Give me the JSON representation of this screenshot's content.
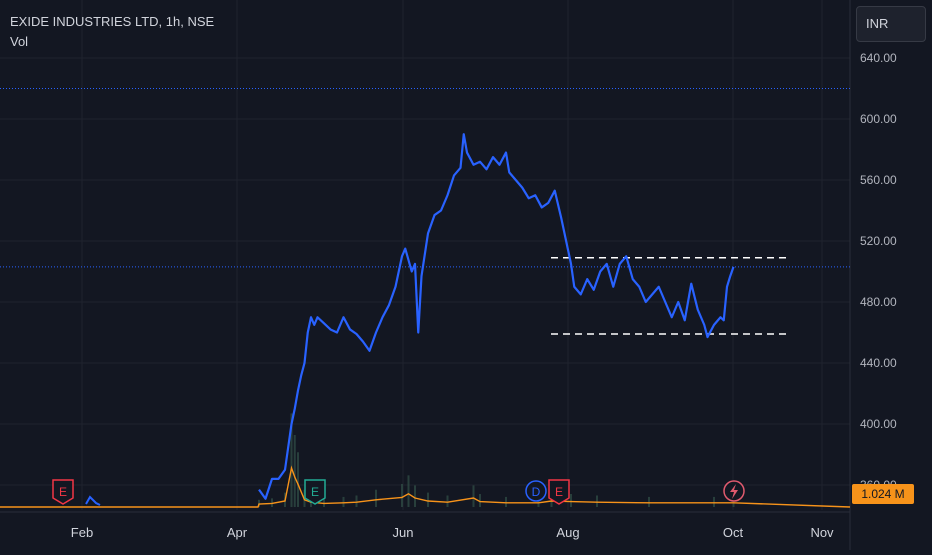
{
  "legend": {
    "symbol": "EXIDE INDUSTRIES LTD, 1h, NSE",
    "volume_label": "Vol"
  },
  "currency": "INR",
  "volume_value": "1.024 M",
  "colors": {
    "background": "#131722",
    "price_line": "#2962ff",
    "volume_ma": "#f7931a",
    "dotted_line": "#2962ff",
    "earnings": "#f23645",
    "event_teal": "#22ab94",
    "dividend": "#2962ff"
  },
  "events": [
    {
      "label": "E",
      "type": "earnings",
      "month": "Jan"
    },
    {
      "label": "E",
      "type": "earnings-teal",
      "month": "May"
    },
    {
      "label": "D",
      "type": "dividend",
      "month": "Jul"
    },
    {
      "label": "E",
      "type": "earnings",
      "month": "Jul"
    },
    {
      "label": "flash-icon",
      "type": "upcoming",
      "month": "Oct"
    }
  ],
  "chart_data": {
    "type": "line",
    "y_ticks": [
      "640.00",
      "600.00",
      "560.00",
      "520.00",
      "480.00",
      "440.00",
      "400.00",
      "360.00"
    ],
    "x_ticks": [
      "Feb",
      "Apr",
      "Jun",
      "Aug",
      "Oct",
      "Nov"
    ],
    "ylim": [
      340,
      660
    ],
    "grid": true,
    "dotted_levels": [
      620,
      503
    ],
    "dashed_levels": [
      509,
      459
    ],
    "series": [
      {
        "values": [
          [
            0,
            357
          ],
          [
            2,
            351
          ],
          [
            4,
            364
          ],
          [
            6,
            364
          ],
          [
            8,
            370
          ],
          [
            9,
            385
          ],
          [
            10,
            400
          ],
          [
            11,
            410
          ],
          [
            12,
            422
          ],
          [
            13,
            432
          ],
          [
            14,
            440
          ],
          [
            15,
            460
          ],
          [
            16,
            470
          ],
          [
            17,
            465
          ],
          [
            18,
            470
          ],
          [
            20,
            466
          ],
          [
            22,
            462
          ],
          [
            24,
            460
          ],
          [
            26,
            470
          ],
          [
            28,
            462
          ],
          [
            30,
            459
          ],
          [
            32,
            454
          ],
          [
            34,
            448
          ],
          [
            36,
            460
          ],
          [
            38,
            470
          ],
          [
            40,
            478
          ],
          [
            42,
            490
          ],
          [
            44,
            510
          ],
          [
            45,
            515
          ],
          [
            47,
            500
          ],
          [
            48,
            505
          ],
          [
            49,
            460
          ],
          [
            50,
            497
          ],
          [
            52,
            525
          ],
          [
            54,
            537
          ],
          [
            56,
            540
          ],
          [
            58,
            550
          ],
          [
            60,
            563
          ],
          [
            62,
            568
          ],
          [
            63,
            590
          ],
          [
            64,
            578
          ],
          [
            66,
            570
          ],
          [
            68,
            572
          ],
          [
            70,
            567
          ],
          [
            72,
            575
          ],
          [
            74,
            570
          ],
          [
            76,
            578
          ],
          [
            77,
            565
          ],
          [
            79,
            560
          ],
          [
            81,
            555
          ],
          [
            83,
            548
          ],
          [
            85,
            550
          ],
          [
            87,
            542
          ],
          [
            89,
            545
          ],
          [
            91,
            553
          ],
          [
            93,
            535
          ],
          [
            95,
            515
          ],
          [
            96,
            505
          ],
          [
            97,
            490
          ],
          [
            99,
            485
          ],
          [
            101,
            495
          ],
          [
            103,
            488
          ],
          [
            105,
            500
          ],
          [
            107,
            505
          ],
          [
            109,
            490
          ],
          [
            111,
            505
          ],
          [
            113,
            510
          ],
          [
            115,
            495
          ],
          [
            117,
            490
          ],
          [
            119,
            480
          ],
          [
            121,
            485
          ],
          [
            123,
            490
          ],
          [
            125,
            480
          ],
          [
            127,
            470
          ],
          [
            129,
            480
          ],
          [
            131,
            468
          ],
          [
            133,
            492
          ],
          [
            135,
            475
          ],
          [
            137,
            465
          ],
          [
            138,
            457
          ],
          [
            140,
            465
          ],
          [
            142,
            470
          ],
          [
            143,
            468
          ],
          [
            144,
            490
          ],
          [
            145,
            497
          ],
          [
            146,
            503
          ]
        ]
      }
    ],
    "volume_series_note": "",
    "volume_ma": [
      [
        0,
        0.5
      ],
      [
        4,
        0.6
      ],
      [
        8,
        1.0
      ],
      [
        10,
        6.5
      ],
      [
        11,
        5.0
      ],
      [
        12,
        3.8
      ],
      [
        14,
        1.2
      ],
      [
        16,
        0.8
      ],
      [
        20,
        0.6
      ],
      [
        26,
        0.7
      ],
      [
        30,
        0.8
      ],
      [
        36,
        1.2
      ],
      [
        44,
        1.6
      ],
      [
        46,
        2.2
      ],
      [
        48,
        1.5
      ],
      [
        52,
        1.0
      ],
      [
        58,
        0.8
      ],
      [
        66,
        1.5
      ],
      [
        68,
        0.9
      ],
      [
        76,
        0.7
      ],
      [
        86,
        0.7
      ],
      [
        90,
        1.0
      ],
      [
        96,
        0.9
      ],
      [
        104,
        0.8
      ],
      [
        120,
        0.7
      ],
      [
        140,
        0.7
      ],
      [
        146,
        0.7
      ]
    ]
  }
}
